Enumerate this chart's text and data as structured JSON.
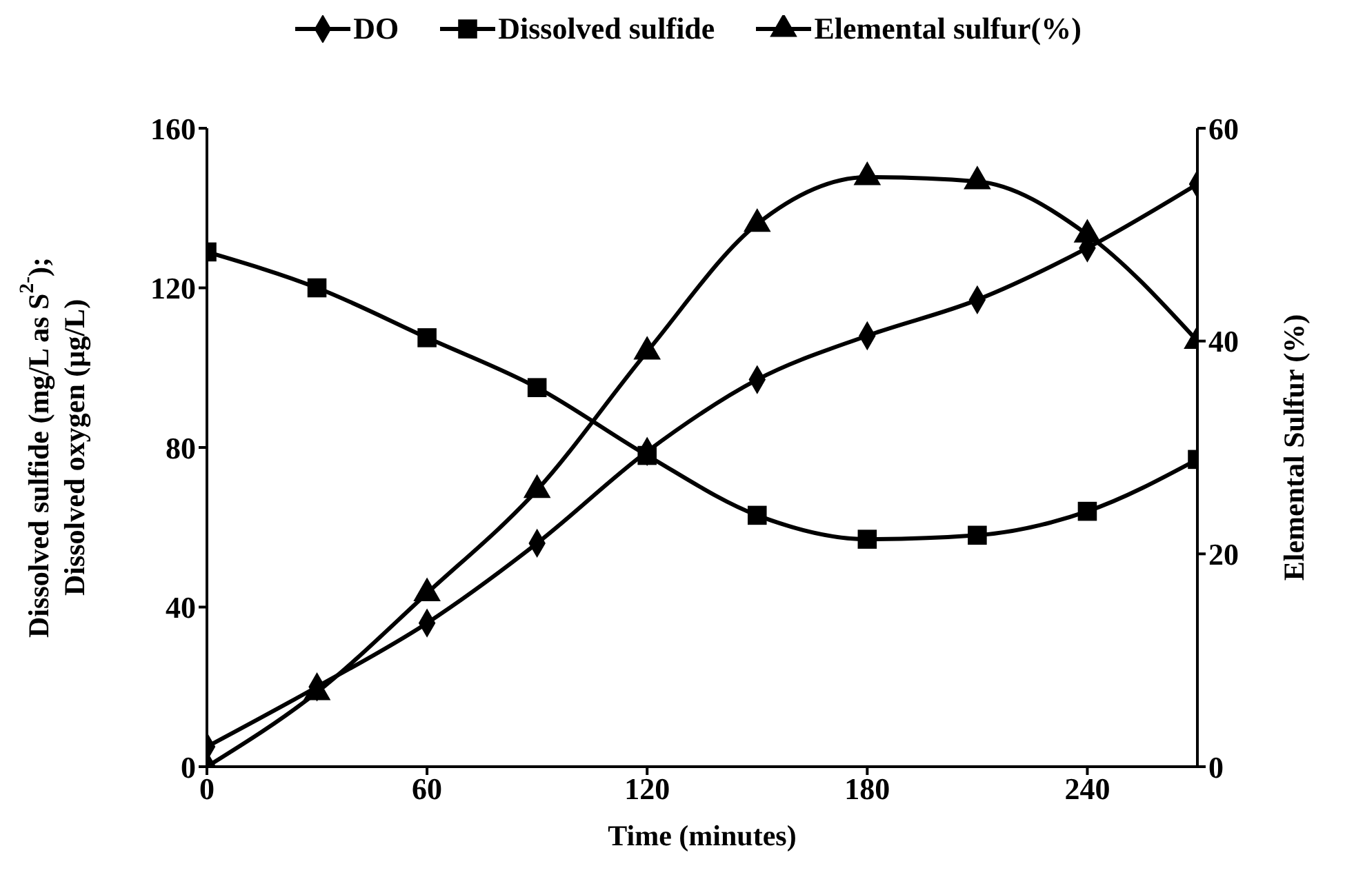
{
  "chart_data": {
    "type": "line",
    "xlabel": "Time (minutes)",
    "ylabel": "Dissolved sulfide (mg/L as S$^{2-}$); Dissolved oxygen (µg/L)",
    "y2label": "Elemental Sulfur (%)",
    "x": [
      0,
      30,
      60,
      90,
      120,
      150,
      180,
      210,
      240,
      270
    ],
    "xlim": [
      0,
      270
    ],
    "xticks": [
      0,
      60,
      120,
      180,
      240
    ],
    "ylim": [
      0,
      160
    ],
    "yticks": [
      0,
      40,
      80,
      120,
      160
    ],
    "y2lim": [
      0,
      60
    ],
    "y2ticks": [
      0,
      20,
      40,
      60
    ],
    "grid": false,
    "legend": "top",
    "line_style": "solid",
    "series": [
      {
        "name": "DO",
        "color": "#000000",
        "marker": "diamond",
        "values": [
          5,
          20,
          36,
          56,
          79,
          97,
          108,
          117,
          130,
          146
        ]
      },
      {
        "name": "Dissolved sulfide",
        "color": "#000000",
        "marker": "square",
        "values": [
          129,
          120,
          107.5,
          95,
          78,
          63,
          57,
          58,
          64,
          77
        ]
      },
      {
        "name": "Elemental sulfur(%)",
        "color": "#000000",
        "marker": "triangle",
        "axis": "y2",
        "values": [
          0,
          7,
          16.3,
          26,
          39,
          51,
          55.4,
          55,
          50,
          40
        ]
      }
    ]
  }
}
